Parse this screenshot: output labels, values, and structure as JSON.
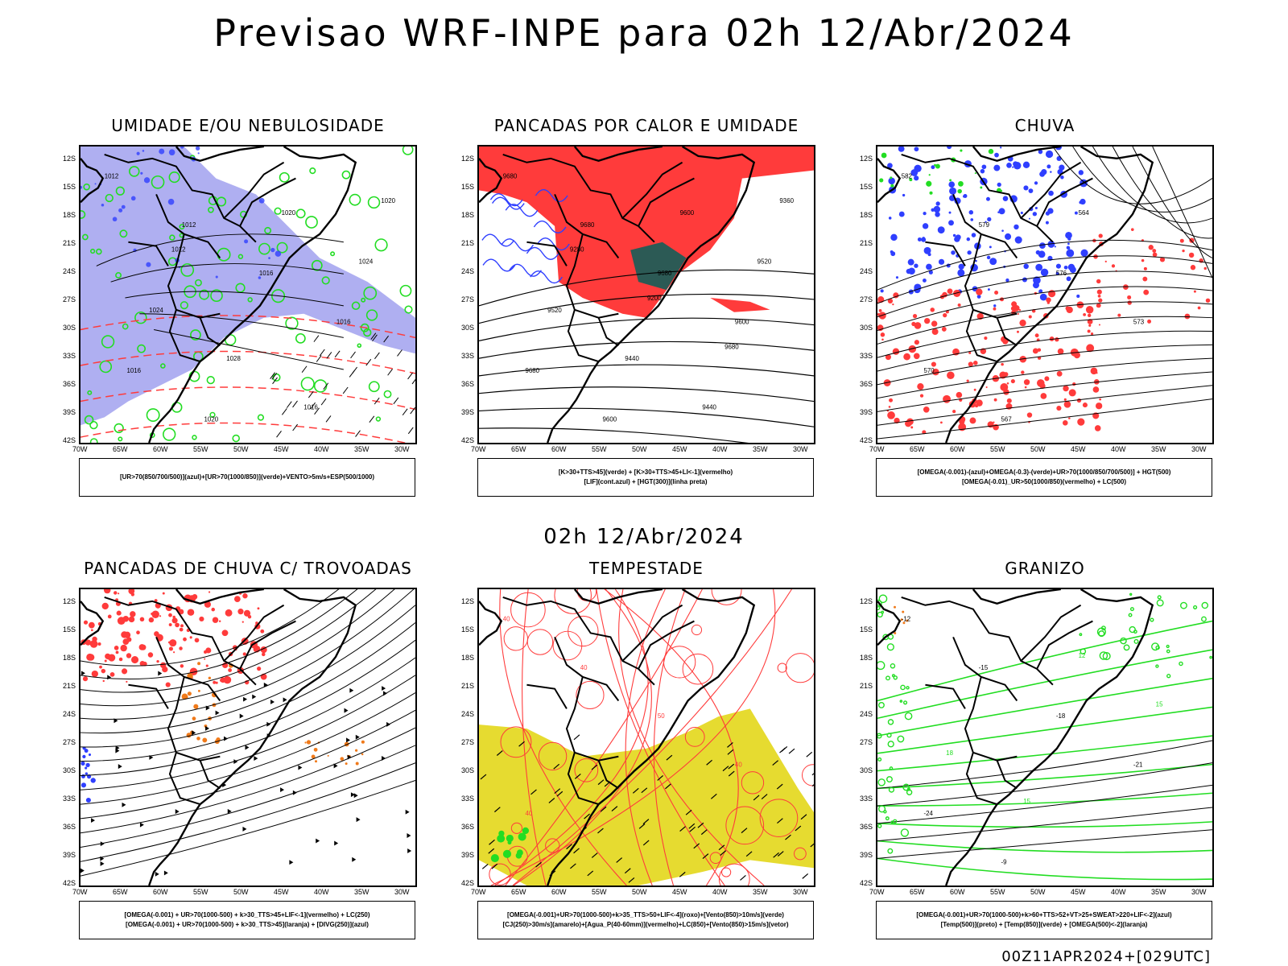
{
  "title": "Previsao WRF-INPE  para 02h 12/Abr/2024",
  "mid_time": "02h 12/Abr/2024",
  "footer": "00Z11APR2024+[029UTC]",
  "lat_ticks": [
    "12S",
    "15S",
    "18S",
    "21S",
    "24S",
    "27S",
    "30S",
    "33S",
    "36S",
    "39S",
    "42S"
  ],
  "lon_ticks": [
    "70W",
    "65W",
    "60W",
    "55W",
    "50W",
    "45W",
    "40W",
    "35W",
    "30W"
  ],
  "colors": {
    "blue": "#2f3fff",
    "green": "#22dd22",
    "red": "#ff3b3b",
    "darkteal": "#2c5a55",
    "lavender": "#a6a6f0",
    "yellow": "#e6db30",
    "orange": "#f07a1a"
  },
  "panels": [
    {
      "title": "UMIDADE E/OU NEBULOSIDADE",
      "caption_lines": [
        "[UR>70(850/700/500)](azul)+[UR>70(1000/850)](verde)+VENTO>5m/s+ESP(500/1000)"
      ],
      "contour_labels": [
        "1012",
        "1012",
        "1016",
        "1016",
        "1016",
        "1020",
        "1020",
        "1024",
        "1024",
        "1028",
        "1016",
        "1020",
        "1012"
      ]
    },
    {
      "title": "PANCADAS POR CALOR E UMIDADE",
      "caption_lines": [
        "[K>30+TTS>45](verde) + [K>30+TTS>45+LI<-1](vermelho)",
        "[LIF](cont.azul) + [HGT(300)](linha preta)"
      ],
      "contour_labels": [
        "9680",
        "9680",
        "9680",
        "9600",
        "9680",
        "9600",
        "9600",
        "9520",
        "9520",
        "9440",
        "9440",
        "9360",
        "9280",
        "9200",
        "9680"
      ]
    },
    {
      "title": "CHUVA",
      "caption_lines": [
        "[OMEGA(-0.001)-(azul)+OMEGA(-0.3)-(verde)+UR>70(1000/850/700/500)] + HGT(500)",
        "[OMEGA(-0.01)_UR>50(1000/850)(vermelho) + LC(500)"
      ],
      "contour_labels": [
        "582",
        "579",
        "576",
        "573",
        "570",
        "567",
        "564"
      ]
    },
    {
      "title": "PANCADAS DE CHUVA C/ TROVOADAS",
      "caption_lines": [
        "[OMEGA(-0.001) + UR>70(1000-500) + k>30_TTS>45+LIF<-1](vermelho) + LC(250)",
        "[OMEGA(-0.001) + UR>70(1000-500) + k>30_TTS>45](laranja) + [DIVG(250)](azul)"
      ],
      "contour_labels": []
    },
    {
      "title": "TEMPESTADE",
      "caption_lines": [
        "[OMEGA(-0.001)+UR>70(1000-500)+k>35_TTS>50+LIF<-4](roxo)+[Vento(850)>10m/s](verde)",
        "[CJ(250)>30m/s](amarelo)+[Agua_P(40-60mm)](vermelho)+LC(850)+[Vento(850)>15m/s](vetor)"
      ],
      "contour_labels": [
        "40",
        "40",
        "50",
        "40",
        "40"
      ]
    },
    {
      "title": "GRANIZO",
      "caption_lines": [
        "[OMEGA(-0.001)+UR>70(1000-500)+k>60+TTS>52+VT>25+SWEAT>220+LIF<-2](azul)",
        "[Temp(500)](preto) + [Temp(850)](verde) + [OMEGA(500)<-2](laranja)"
      ],
      "contour_labels": [
        "-12",
        "-15",
        "-18",
        "-21",
        "-24",
        "-9",
        "12",
        "15",
        "18",
        "15"
      ]
    }
  ]
}
